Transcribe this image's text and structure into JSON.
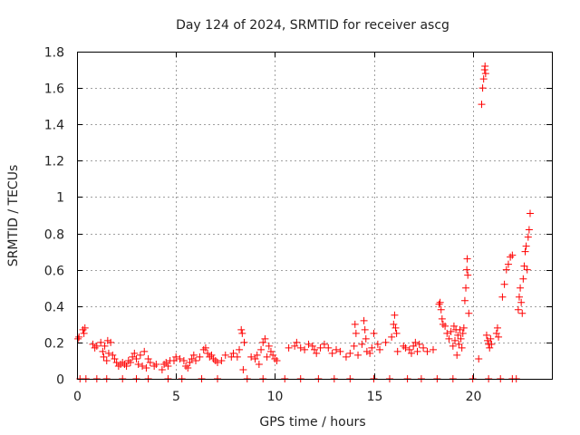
{
  "chart_data": {
    "type": "scatter",
    "title": "Day 124 of 2024, SRMTID for receiver ascg",
    "xlabel": "GPS time / hours",
    "ylabel": "SRMTID / TECUs",
    "xlim": [
      0,
      24
    ],
    "ylim": [
      0,
      1.8
    ],
    "grid": true,
    "marker": "+",
    "color": "#ff0000",
    "xticks": [
      0,
      5,
      10,
      15,
      20
    ],
    "xtick_labels": [
      "0",
      "5",
      "10",
      "15",
      "20"
    ],
    "yticks": [
      0,
      0.2,
      0.4,
      0.6,
      0.8,
      1,
      1.2,
      1.4,
      1.6,
      1.8
    ],
    "ytick_labels": [
      "0",
      "0.2",
      "0.4",
      "0.6",
      "0.8",
      "1",
      "1.2",
      "1.4",
      "1.6",
      "1.8"
    ],
    "series": [
      {
        "name": "SRMTID",
        "points": [
          [
            0.05,
            0.22
          ],
          [
            0.1,
            0.23
          ],
          [
            0.15,
            0.0
          ],
          [
            0.3,
            0.27
          ],
          [
            0.35,
            0.25
          ],
          [
            0.4,
            0.28
          ],
          [
            0.45,
            0.0
          ],
          [
            0.8,
            0.19
          ],
          [
            0.9,
            0.17
          ],
          [
            1.0,
            0.18
          ],
          [
            1.2,
            0.2
          ],
          [
            1.3,
            0.15
          ],
          [
            1.35,
            0.12
          ],
          [
            1.4,
            0.18
          ],
          [
            1.5,
            0.1
          ],
          [
            1.55,
            0.21
          ],
          [
            1.6,
            0.14
          ],
          [
            1.7,
            0.2
          ],
          [
            1.8,
            0.13
          ],
          [
            1.9,
            0.11
          ],
          [
            2.0,
            0.09
          ],
          [
            2.1,
            0.07
          ],
          [
            2.2,
            0.08
          ],
          [
            2.3,
            0.09
          ],
          [
            2.4,
            0.08
          ],
          [
            2.5,
            0.07
          ],
          [
            2.6,
            0.1
          ],
          [
            2.7,
            0.09
          ],
          [
            2.8,
            0.12
          ],
          [
            2.9,
            0.14
          ],
          [
            3.0,
            0.11
          ],
          [
            3.1,
            0.08
          ],
          [
            3.2,
            0.13
          ],
          [
            3.3,
            0.07
          ],
          [
            3.4,
            0.15
          ],
          [
            3.5,
            0.06
          ],
          [
            3.6,
            0.11
          ],
          [
            3.7,
            0.09
          ],
          [
            3.9,
            0.07
          ],
          [
            4.0,
            0.08
          ],
          [
            4.3,
            0.05
          ],
          [
            4.4,
            0.08
          ],
          [
            4.5,
            0.09
          ],
          [
            4.6,
            0.07
          ],
          [
            4.7,
            0.1
          ],
          [
            4.9,
            0.1
          ],
          [
            5.0,
            0.12
          ],
          [
            5.2,
            0.11
          ],
          [
            5.4,
            0.1
          ],
          [
            5.5,
            0.07
          ],
          [
            5.6,
            0.06
          ],
          [
            5.7,
            0.09
          ],
          [
            5.8,
            0.11
          ],
          [
            5.9,
            0.13
          ],
          [
            6.0,
            0.1
          ],
          [
            6.2,
            0.12
          ],
          [
            6.4,
            0.16
          ],
          [
            6.5,
            0.17
          ],
          [
            6.6,
            0.14
          ],
          [
            6.7,
            0.12
          ],
          [
            6.8,
            0.13
          ],
          [
            6.9,
            0.11
          ],
          [
            7.0,
            0.1
          ],
          [
            7.1,
            0.09
          ],
          [
            7.3,
            0.1
          ],
          [
            7.5,
            0.13
          ],
          [
            7.8,
            0.12
          ],
          [
            7.9,
            0.14
          ],
          [
            8.1,
            0.12
          ],
          [
            8.2,
            0.16
          ],
          [
            8.3,
            0.27
          ],
          [
            8.35,
            0.25
          ],
          [
            8.4,
            0.05
          ],
          [
            8.45,
            0.2
          ],
          [
            8.8,
            0.12
          ],
          [
            9.0,
            0.11
          ],
          [
            9.1,
            0.13
          ],
          [
            9.2,
            0.08
          ],
          [
            9.3,
            0.16
          ],
          [
            9.4,
            0.2
          ],
          [
            9.5,
            0.22
          ],
          [
            9.6,
            0.12
          ],
          [
            9.7,
            0.18
          ],
          [
            9.8,
            0.15
          ],
          [
            9.9,
            0.13
          ],
          [
            10.0,
            0.11
          ],
          [
            10.1,
            0.1
          ],
          [
            10.7,
            0.17
          ],
          [
            11.0,
            0.18
          ],
          [
            11.1,
            0.2
          ],
          [
            11.3,
            0.17
          ],
          [
            11.5,
            0.16
          ],
          [
            11.7,
            0.19
          ],
          [
            11.9,
            0.18
          ],
          [
            12.0,
            0.16
          ],
          [
            12.1,
            0.14
          ],
          [
            12.3,
            0.17
          ],
          [
            12.5,
            0.19
          ],
          [
            12.7,
            0.17
          ],
          [
            12.9,
            0.14
          ],
          [
            13.1,
            0.16
          ],
          [
            13.3,
            0.15
          ],
          [
            13.6,
            0.12
          ],
          [
            13.8,
            0.14
          ],
          [
            14.0,
            0.18
          ],
          [
            14.05,
            0.3
          ],
          [
            14.1,
            0.25
          ],
          [
            14.2,
            0.13
          ],
          [
            14.4,
            0.19
          ],
          [
            14.5,
            0.32
          ],
          [
            14.55,
            0.27
          ],
          [
            14.6,
            0.22
          ],
          [
            14.65,
            0.15
          ],
          [
            14.8,
            0.14
          ],
          [
            14.9,
            0.17
          ],
          [
            15.0,
            0.25
          ],
          [
            15.2,
            0.19
          ],
          [
            15.3,
            0.16
          ],
          [
            15.6,
            0.2
          ],
          [
            15.9,
            0.23
          ],
          [
            16.0,
            0.3
          ],
          [
            16.05,
            0.35
          ],
          [
            16.1,
            0.28
          ],
          [
            16.15,
            0.25
          ],
          [
            16.2,
            0.15
          ],
          [
            16.5,
            0.18
          ],
          [
            16.6,
            0.17
          ],
          [
            16.8,
            0.16
          ],
          [
            16.9,
            0.14
          ],
          [
            17.0,
            0.18
          ],
          [
            17.1,
            0.2
          ],
          [
            17.2,
            0.15
          ],
          [
            17.3,
            0.19
          ],
          [
            17.5,
            0.17
          ],
          [
            17.7,
            0.15
          ],
          [
            18.0,
            0.16
          ],
          [
            18.3,
            0.41
          ],
          [
            18.35,
            0.42
          ],
          [
            18.4,
            0.38
          ],
          [
            18.45,
            0.33
          ],
          [
            18.5,
            0.3
          ],
          [
            18.6,
            0.29
          ],
          [
            18.7,
            0.25
          ],
          [
            18.8,
            0.22
          ],
          [
            18.9,
            0.26
          ],
          [
            19.0,
            0.18
          ],
          [
            19.05,
            0.29
          ],
          [
            19.1,
            0.21
          ],
          [
            19.15,
            0.27
          ],
          [
            19.2,
            0.13
          ],
          [
            19.25,
            0.24
          ],
          [
            19.3,
            0.19
          ],
          [
            19.35,
            0.27
          ],
          [
            19.4,
            0.22
          ],
          [
            19.45,
            0.17
          ],
          [
            19.5,
            0.25
          ],
          [
            19.55,
            0.28
          ],
          [
            19.6,
            0.43
          ],
          [
            19.65,
            0.5
          ],
          [
            19.7,
            0.6
          ],
          [
            19.72,
            0.66
          ],
          [
            19.75,
            0.57
          ],
          [
            19.8,
            0.36
          ],
          [
            20.0,
            0.0
          ],
          [
            20.3,
            0.11
          ],
          [
            20.45,
            1.51
          ],
          [
            20.5,
            1.6
          ],
          [
            20.55,
            1.65
          ],
          [
            20.6,
            1.7
          ],
          [
            20.62,
            1.72
          ],
          [
            20.65,
            1.68
          ],
          [
            20.7,
            0.24
          ],
          [
            20.75,
            0.21
          ],
          [
            20.8,
            0.19
          ],
          [
            20.85,
            0.17
          ],
          [
            20.9,
            0.22
          ],
          [
            20.95,
            0.19
          ],
          [
            21.2,
            0.25
          ],
          [
            21.25,
            0.28
          ],
          [
            21.3,
            0.23
          ],
          [
            22.0,
            0.0
          ],
          [
            22.3,
            0.38
          ],
          [
            22.35,
            0.45
          ],
          [
            22.4,
            0.5
          ],
          [
            22.45,
            0.42
          ],
          [
            22.5,
            0.36
          ],
          [
            22.55,
            0.55
          ],
          [
            22.6,
            0.62
          ],
          [
            22.65,
            0.7
          ],
          [
            22.7,
            0.73
          ],
          [
            22.75,
            0.6
          ],
          [
            22.8,
            0.78
          ],
          [
            22.85,
            0.82
          ],
          [
            22.9,
            0.91
          ],
          [
            21.5,
            0.45
          ],
          [
            21.6,
            0.52
          ],
          [
            21.7,
            0.6
          ],
          [
            21.8,
            0.63
          ],
          [
            21.9,
            0.67
          ],
          [
            22.0,
            0.68
          ],
          [
            1.0,
            0.0
          ],
          [
            1.5,
            0.0
          ],
          [
            2.3,
            0.0
          ],
          [
            3.0,
            0.0
          ],
          [
            3.6,
            0.0
          ],
          [
            4.6,
            0.0
          ],
          [
            5.3,
            0.0
          ],
          [
            6.3,
            0.0
          ],
          [
            7.1,
            0.0
          ],
          [
            8.6,
            0.0
          ],
          [
            9.4,
            0.0
          ],
          [
            10.5,
            0.0
          ],
          [
            11.3,
            0.0
          ],
          [
            12.2,
            0.0
          ],
          [
            13.0,
            0.0
          ],
          [
            13.8,
            0.0
          ],
          [
            15.0,
            0.0
          ],
          [
            15.8,
            0.0
          ],
          [
            16.7,
            0.0
          ],
          [
            17.4,
            0.0
          ],
          [
            18.2,
            0.0
          ],
          [
            19.0,
            0.0
          ],
          [
            20.8,
            0.0
          ],
          [
            21.4,
            0.0
          ],
          [
            22.2,
            0.0
          ]
        ]
      }
    ]
  }
}
